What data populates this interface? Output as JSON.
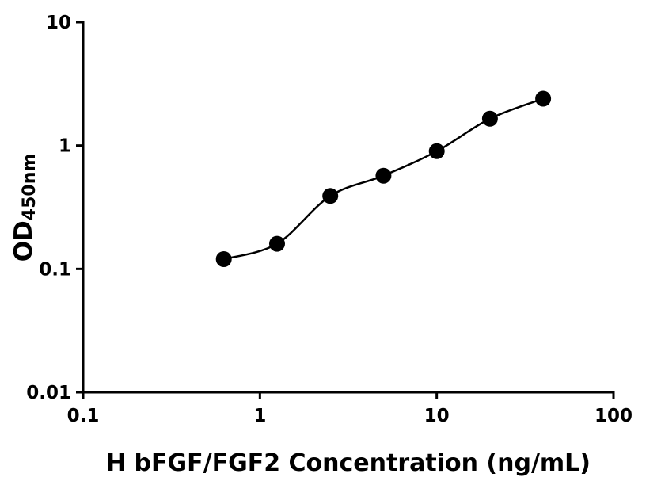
{
  "figure": {
    "background": "#ffffff"
  },
  "colors": {
    "axis": "#000000",
    "tick_label": "#000000",
    "marker": "#000000",
    "curve": "#000000"
  },
  "chart_data": {
    "type": "scatter",
    "xlabel": "H bFGF/FGF2 Concentration (ng/mL)",
    "ylabel_base": "OD",
    "ylabel_sub": "450nm",
    "x_scale": "log10",
    "y_scale": "log10",
    "xlim": [
      0.1,
      100
    ],
    "ylim": [
      0.01,
      10
    ],
    "grid": false,
    "legend": false,
    "x_ticks": [
      0.1,
      1,
      10,
      100
    ],
    "x_tick_labels": [
      "0.1",
      "1",
      "10",
      "100"
    ],
    "y_ticks": [
      0.01,
      0.1,
      1,
      10
    ],
    "y_tick_labels": [
      "0.01",
      "0.1",
      "1",
      "10"
    ],
    "series": [
      {
        "marker": "circle",
        "marker_color": "#000000",
        "line": "smooth-fit",
        "line_color": "#000000",
        "points": [
          {
            "x": 0.625,
            "y": 0.12
          },
          {
            "x": 1.25,
            "y": 0.16
          },
          {
            "x": 2.5,
            "y": 0.39
          },
          {
            "x": 5,
            "y": 0.57
          },
          {
            "x": 10,
            "y": 0.9
          },
          {
            "x": 20,
            "y": 1.65
          },
          {
            "x": 40,
            "y": 2.4
          }
        ]
      }
    ]
  }
}
